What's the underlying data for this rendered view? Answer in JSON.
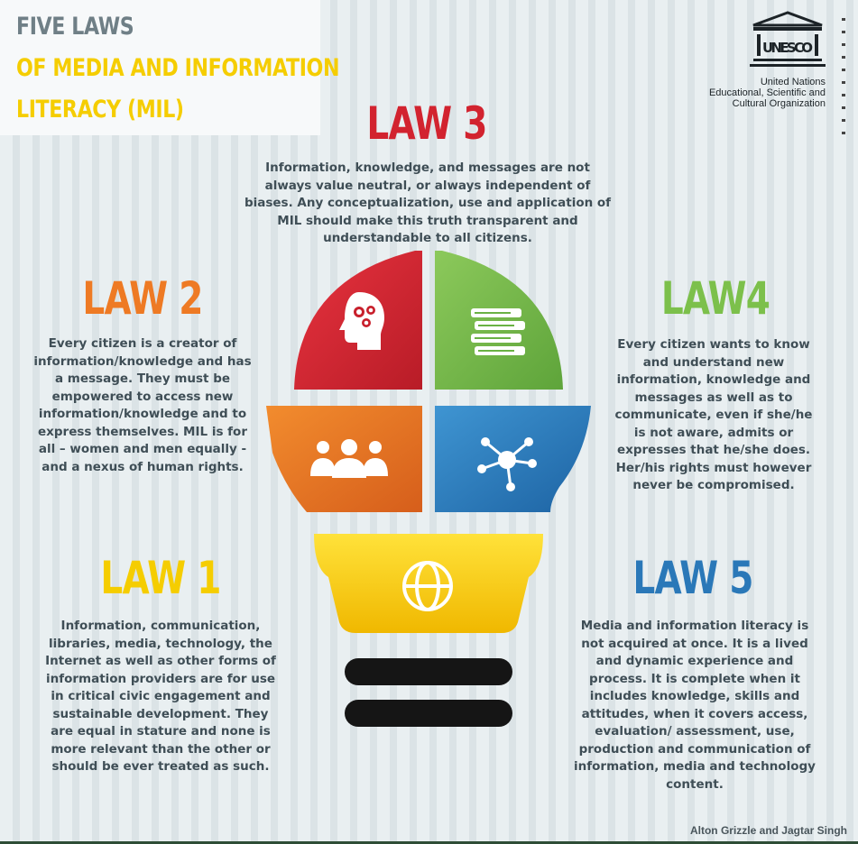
{
  "title": {
    "line1": "FIVE LAWS",
    "line2": "OF MEDIA AND INFORMATION",
    "line3": "LITERACY (MIL)"
  },
  "logo": {
    "wordmark": "UNESCO",
    "org_lines": [
      "United Nations",
      "Educational, Scientific and",
      "Cultural Organization"
    ]
  },
  "laws": [
    {
      "heading": "LAW 1",
      "color": "#f5cd00",
      "text": "Information, communication, libraries, media, technology, the Internet as well as other forms of information providers are for use in critical civic engagement and sustainable development. They are equal in stature and none is more relevant than the other or should be ever treated as such."
    },
    {
      "heading": "LAW 2",
      "color": "#ee7a24",
      "text": "Every citizen is a creator of information/knowledge and has a message. They must be empowered to access new information/knowledge and to express themselves. MIL is for all – women and men equally - and a nexus of human rights."
    },
    {
      "heading": "LAW 3",
      "color": "#d2232f",
      "text": "Information, knowledge, and messages are not always value neutral, or always independent of biases. Any conceptualization, use and application of MIL should make this truth transparent and understandable to all citizens."
    },
    {
      "heading": "LAW4",
      "color": "#7cc04b",
      "text": "Every citizen wants to know and understand new information, knowledge and messages as well as to communicate, even if she/he is not aware, admits or expresses that he/she does. Her/his rights must however never be compromised."
    },
    {
      "heading": "LAW 5",
      "color": "#2a78b8",
      "text": "Media and information literacy is not acquired at once. It is a lived and dynamic experience and process. It is complete when it includes knowledge, skills and attitudes, when it covers access, evaluation/ assessment, use, production and communication of information, media and technology content."
    }
  ],
  "icons": [
    "brain-gears-icon",
    "books-icon",
    "people-group-icon",
    "network-icon",
    "globe-icon"
  ],
  "credit": "Alton Grizzle and Jagtar Singh"
}
